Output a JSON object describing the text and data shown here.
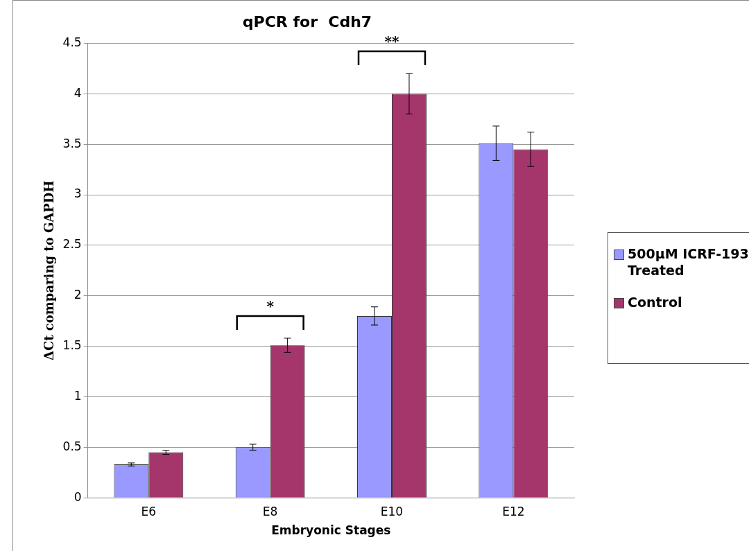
{
  "chart_data": {
    "type": "bar",
    "title": "qPCR for  Cdh7",
    "xlabel": "Embryonic Stages",
    "ylabel": "ΔCt comparing to GAPDH",
    "categories": [
      "E6",
      "E8",
      "E10",
      "E12"
    ],
    "series": [
      {
        "name": "500µM ICRF-193 Treated",
        "color": "#9999ff",
        "values": [
          0.33,
          0.5,
          1.8,
          3.51
        ],
        "errors": [
          0.015,
          0.03,
          0.09,
          0.17
        ]
      },
      {
        "name": "Control",
        "color": "#a5366b",
        "values": [
          0.45,
          1.51,
          4.0,
          3.45
        ],
        "errors": [
          0.02,
          0.07,
          0.2,
          0.17
        ]
      }
    ],
    "ylim": [
      0,
      4.5
    ],
    "yticks": [
      0,
      0.5,
      1,
      1.5,
      2,
      2.5,
      3,
      3.5,
      4,
      4.5
    ],
    "grid": "y",
    "legend": "right",
    "annotations": [
      "*",
      "**"
    ]
  }
}
